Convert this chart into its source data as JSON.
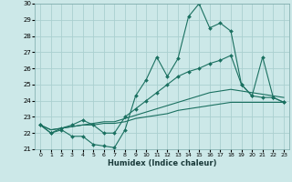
{
  "xlabel": "Humidex (Indice chaleur)",
  "bg_color": "#cce8e8",
  "grid_color": "#aacfcf",
  "line_color": "#1a7060",
  "xlim": [
    -0.5,
    23.5
  ],
  "ylim": [
    21,
    30
  ],
  "yticks": [
    21,
    22,
    23,
    24,
    25,
    26,
    27,
    28,
    29,
    30
  ],
  "xticks": [
    0,
    1,
    2,
    3,
    4,
    5,
    6,
    7,
    8,
    9,
    10,
    11,
    12,
    13,
    14,
    15,
    16,
    17,
    18,
    19,
    20,
    21,
    22,
    23
  ],
  "line1_x": [
    0,
    1,
    2,
    3,
    4,
    5,
    6,
    7,
    8,
    9,
    10,
    11,
    12,
    13,
    14,
    15,
    16,
    17,
    18,
    19,
    20,
    21,
    22,
    23
  ],
  "line1_y": [
    22.5,
    22.0,
    22.2,
    21.8,
    21.8,
    21.3,
    21.2,
    21.1,
    22.2,
    24.3,
    25.3,
    26.7,
    25.5,
    26.6,
    29.2,
    30.0,
    28.5,
    28.8,
    28.3,
    25.0,
    24.3,
    24.2,
    24.2,
    23.9
  ],
  "line2_x": [
    0,
    1,
    2,
    3,
    4,
    5,
    6,
    7,
    8,
    9,
    10,
    11,
    12,
    13,
    14,
    15,
    16,
    17,
    18,
    19,
    20,
    21,
    22,
    23
  ],
  "line2_y": [
    22.5,
    22.0,
    22.3,
    22.5,
    22.8,
    22.5,
    22.0,
    22.0,
    23.0,
    23.5,
    24.0,
    24.5,
    25.0,
    25.5,
    25.8,
    26.0,
    26.3,
    26.5,
    26.8,
    25.0,
    24.3,
    26.7,
    24.2,
    23.9
  ],
  "line3_x": [
    0,
    1,
    2,
    3,
    4,
    5,
    6,
    7,
    8,
    9,
    10,
    11,
    12,
    13,
    14,
    15,
    16,
    17,
    18,
    19,
    20,
    21,
    22,
    23
  ],
  "line3_y": [
    22.5,
    22.2,
    22.3,
    22.4,
    22.5,
    22.6,
    22.7,
    22.7,
    22.9,
    23.1,
    23.3,
    23.5,
    23.7,
    23.9,
    24.1,
    24.3,
    24.5,
    24.6,
    24.7,
    24.6,
    24.5,
    24.4,
    24.3,
    24.2
  ],
  "line4_x": [
    0,
    1,
    2,
    3,
    4,
    5,
    6,
    7,
    8,
    9,
    10,
    11,
    12,
    13,
    14,
    15,
    16,
    17,
    18,
    19,
    20,
    21,
    22,
    23
  ],
  "line4_y": [
    22.5,
    22.2,
    22.3,
    22.4,
    22.5,
    22.5,
    22.6,
    22.6,
    22.7,
    22.9,
    23.0,
    23.1,
    23.2,
    23.4,
    23.5,
    23.6,
    23.7,
    23.8,
    23.9,
    23.9,
    23.9,
    23.9,
    23.9,
    23.9
  ]
}
